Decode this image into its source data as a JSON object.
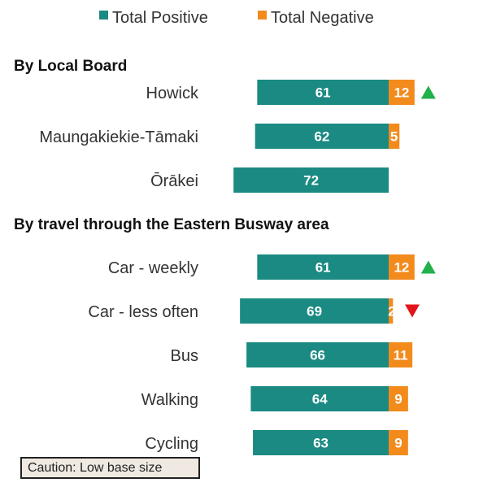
{
  "chart_data": {
    "type": "bar",
    "orientation": "horizontal",
    "stacked": "diverging",
    "legend": {
      "position": "top",
      "entries": [
        {
          "label": "Total Positive",
          "color": "#1a8a82"
        },
        {
          "label": "Total Negative",
          "color": "#f28a1c"
        }
      ]
    },
    "groups": [
      {
        "title": "By Local Board",
        "rows": [
          {
            "category": "Howick",
            "positive": 61,
            "negative": 12,
            "trend": "up"
          },
          {
            "category": "Maungakiekie-Tāmaki",
            "positive": 62,
            "negative": 5,
            "trend": null
          },
          {
            "category": "Ōrākei",
            "positive": 72,
            "negative": 0,
            "trend": null
          }
        ]
      },
      {
        "title": "By travel through the Eastern Busway area",
        "rows": [
          {
            "category": "Car - weekly",
            "positive": 61,
            "negative": 12,
            "trend": "up"
          },
          {
            "category": "Car - less often",
            "positive": 69,
            "negative": 2,
            "trend": "down"
          },
          {
            "category": "Bus",
            "positive": 66,
            "negative": 11,
            "trend": null
          },
          {
            "category": "Walking",
            "positive": 64,
            "negative": 9,
            "trend": null
          },
          {
            "category": "Cycling",
            "positive": 63,
            "negative": 9,
            "trend": null
          }
        ]
      }
    ],
    "trend_colors": {
      "up": "#22b04b",
      "down": "#e3141b"
    }
  },
  "caution_note": "Caution: Low base size"
}
